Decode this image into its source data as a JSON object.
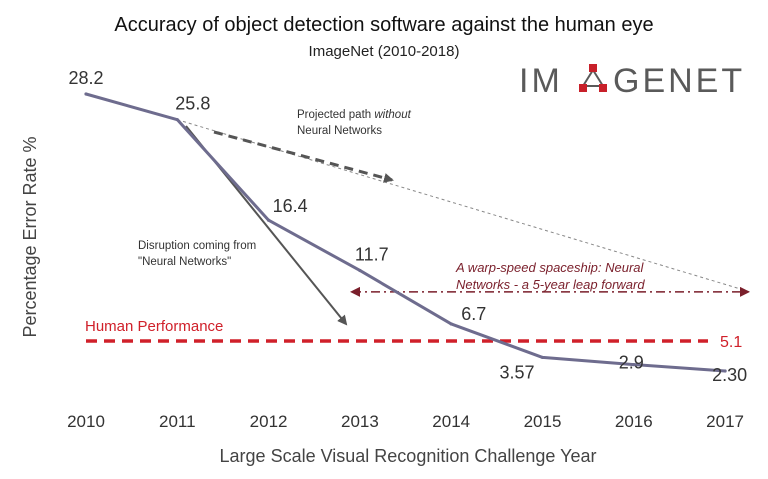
{
  "chart_data": {
    "type": "line",
    "title": "Accuracy of object detection software against the human eye",
    "subtitle": "ImageNet (2010-2018)",
    "logo_text": "IMAGENET",
    "xlabel": "Large Scale Visual Recognition Challenge Year",
    "ylabel": "Percentage Error Rate %",
    "x": [
      "2010",
      "2011",
      "2012",
      "2013",
      "2014",
      "2015",
      "2016",
      "2017"
    ],
    "series": [
      {
        "values": [
          28.2,
          25.8,
          16.4,
          11.7,
          6.7,
          3.57,
          2.9,
          2.3
        ],
        "value_labels": [
          "28.2",
          "25.8",
          "16.4",
          "11.7",
          "6.7",
          "3.57",
          "2.9",
          "2.30"
        ],
        "color": "#6e6c8e"
      }
    ],
    "reference_line": {
      "name": "Human Performance",
      "value": 5.1,
      "value_label": "5.1",
      "color": "#d0202a"
    },
    "projection": {
      "label_prefix": "Projected path ",
      "label_italic": "without",
      "label_line2": "Neural Networks",
      "from": {
        "x": "2011",
        "y": 25.8
      },
      "to_y": 9.7,
      "color": "#555555"
    },
    "disruption": {
      "label_line1": "Disruption coming from",
      "label_line2": "\"Neural Networks\"",
      "color": "#555555"
    },
    "leap": {
      "label_line1": "A warp-speed spaceship: Neural",
      "label_line2": "Networks  - a 5-year leap forward",
      "y": 9.7,
      "color": "#7a1f2b"
    }
  }
}
